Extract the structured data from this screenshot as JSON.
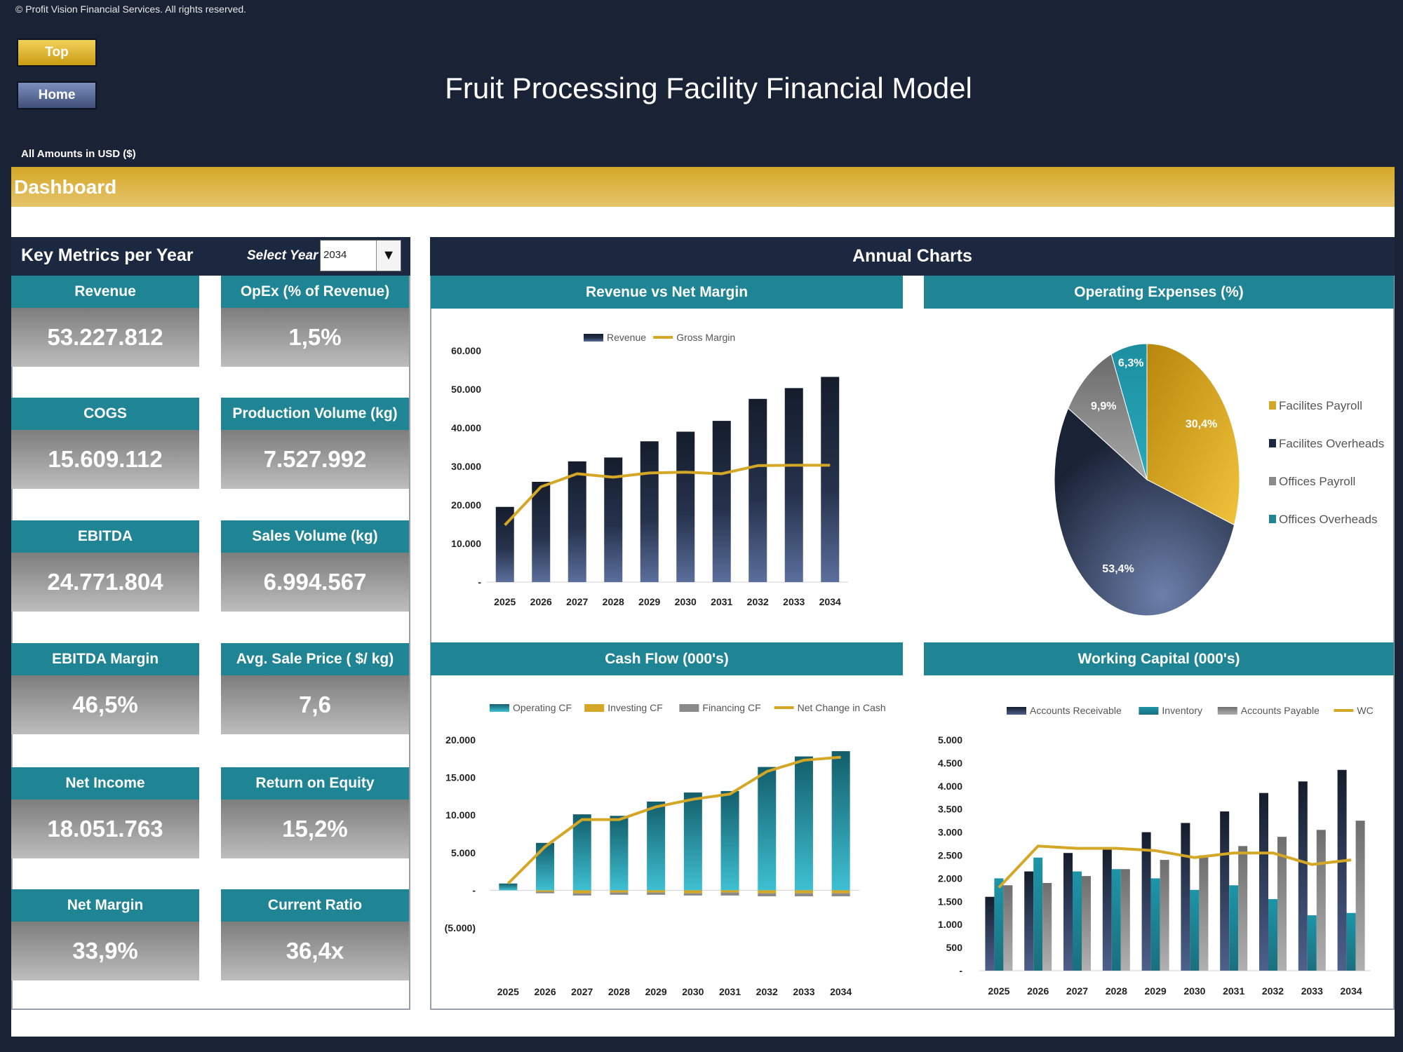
{
  "header": {
    "copyright": "© Profit Vision Financial Services. All rights reserved.",
    "title": "Fruit Processing Facility Financial Model",
    "amounts_note": "All Amounts in  USD ($)",
    "buttons": {
      "top": "Top",
      "home": "Home"
    },
    "section": "Dashboard"
  },
  "key_metrics": {
    "title": "Key Metrics per Year",
    "select_label": "Select Year",
    "selected_year": "2034",
    "metrics": [
      {
        "label": "Revenue",
        "value": "53.227.812"
      },
      {
        "label": "OpEx (% of Revenue)",
        "value": "1,5%"
      },
      {
        "label": "COGS",
        "value": "15.609.112"
      },
      {
        "label": "Production Volume (kg)",
        "value": "7.527.992"
      },
      {
        "label": "EBITDA",
        "value": "24.771.804"
      },
      {
        "label": "Sales Volume (kg)",
        "value": "6.994.567"
      },
      {
        "label": "EBITDA Margin",
        "value": "46,5%"
      },
      {
        "label": "Avg. Sale Price ( $/ kg)",
        "value": "7,6"
      },
      {
        "label": "Net Income",
        "value": "18.051.763"
      },
      {
        "label": "Return on Equity",
        "value": "15,2%"
      },
      {
        "label": "Net Margin",
        "value": "33,9%"
      },
      {
        "label": "Current Ratio",
        "value": "36,4x"
      }
    ]
  },
  "annual_charts": {
    "title": "Annual Charts"
  },
  "colors": {
    "navy": "#1c2740",
    "teal": "#1f8494",
    "gold": "#d4a726",
    "grey": "#8a8a8a"
  },
  "chart_data": [
    {
      "type": "bar",
      "title": "Revenue vs Net Margin",
      "categories": [
        "2025",
        "2026",
        "2027",
        "2028",
        "2029",
        "2030",
        "2031",
        "2032",
        "2033",
        "2034"
      ],
      "yticks": [
        "60.000",
        "50.000",
        "40.000",
        "30.000",
        "20.000",
        "10.000",
        "-"
      ],
      "ylim": [
        0,
        60000
      ],
      "series": [
        {
          "name": "Revenue",
          "kind": "bar",
          "values": [
            19500,
            26000,
            31300,
            32300,
            36500,
            39000,
            41800,
            47500,
            50300,
            53200
          ]
        },
        {
          "name": "Gross Margin",
          "kind": "line",
          "values": [
            14800,
            24700,
            28100,
            27200,
            28300,
            28500,
            28100,
            30200,
            30300,
            30300
          ]
        }
      ]
    },
    {
      "type": "pie",
      "title": "Operating Expenses (%)",
      "legend": "right",
      "slices": [
        {
          "name": "Facilites Payroll",
          "value": 30.4,
          "label": "30,4%"
        },
        {
          "name": "Facilites Overheads",
          "value": 53.4,
          "label": "53,4%"
        },
        {
          "name": "Offices Payroll",
          "value": 9.9,
          "label": "9,9%"
        },
        {
          "name": "Offices Overheads",
          "value": 6.3,
          "label": "6,3%"
        }
      ]
    },
    {
      "type": "bar",
      "title": "Cash Flow (000's)",
      "categories": [
        "2025",
        "2026",
        "2027",
        "2028",
        "2029",
        "2030",
        "2031",
        "2032",
        "2033",
        "2034"
      ],
      "yticks": [
        "20.000",
        "15.000",
        "10.000",
        "5.000",
        "-",
        "(5.000)"
      ],
      "ylim": [
        -5000,
        20000
      ],
      "series": [
        {
          "name": "Operating CF",
          "kind": "bar",
          "values": [
            900,
            6300,
            10100,
            9900,
            11800,
            13000,
            13200,
            16400,
            17800,
            18500
          ]
        },
        {
          "name": "Investing CF",
          "kind": "bar",
          "values": [
            0,
            -200,
            -400,
            -300,
            -300,
            -400,
            -300,
            -400,
            -400,
            -400
          ]
        },
        {
          "name": "Financing CF",
          "kind": "bar",
          "values": [
            0,
            -200,
            -300,
            -300,
            -300,
            -300,
            -400,
            -400,
            -400,
            -400
          ]
        },
        {
          "name": "Net Change in Cash",
          "kind": "line",
          "values": [
            900,
            5800,
            9400,
            9400,
            11100,
            12100,
            12800,
            15800,
            17300,
            17700
          ]
        }
      ]
    },
    {
      "type": "bar",
      "title": "Working Capital (000's)",
      "categories": [
        "2025",
        "2026",
        "2027",
        "2028",
        "2029",
        "2030",
        "2031",
        "2032",
        "2033",
        "2034"
      ],
      "yticks": [
        "5.000",
        "4.500",
        "4.000",
        "3.500",
        "3.000",
        "2.500",
        "2.000",
        "1.500",
        "1.000",
        "500",
        "-"
      ],
      "ylim": [
        0,
        5000
      ],
      "series": [
        {
          "name": "Accounts Receivable",
          "kind": "bar",
          "values": [
            1600,
            2150,
            2550,
            2650,
            3000,
            3200,
            3450,
            3850,
            4100,
            4350
          ]
        },
        {
          "name": "Inventory",
          "kind": "bar",
          "values": [
            2000,
            2450,
            2150,
            2200,
            2000,
            1750,
            1850,
            1550,
            1200,
            1250
          ]
        },
        {
          "name": "Accounts Payable",
          "kind": "bar",
          "values": [
            1850,
            1900,
            2050,
            2200,
            2400,
            2500,
            2700,
            2900,
            3050,
            3250
          ]
        },
        {
          "name": "WC",
          "kind": "line",
          "values": [
            1800,
            2700,
            2650,
            2650,
            2600,
            2450,
            2550,
            2550,
            2300,
            2400
          ]
        }
      ]
    }
  ]
}
